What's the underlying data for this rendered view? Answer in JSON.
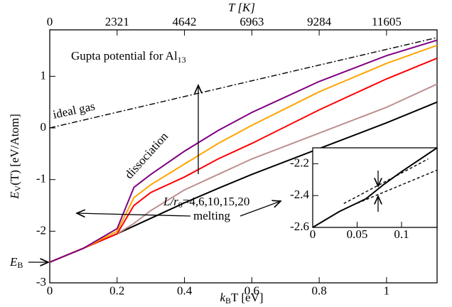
{
  "chart_data": [
    {
      "type": "line",
      "x_label": [
        "k",
        "B",
        "T [eV]"
      ],
      "y_label": [
        "E",
        "V",
        "(T) [eV/Atom]"
      ],
      "x2_label": "T [K]",
      "annotations": {
        "potential": [
          "Gupta potential for Al",
          "13"
        ],
        "ideal_gas": "ideal gas",
        "dissociation": "dissociation",
        "sizes": [
          "L/r",
          "0",
          "=4,6,10,15,20"
        ],
        "melting": "melting",
        "binding": [
          "E",
          "B"
        ]
      },
      "xlim": [
        0,
        1.15
      ],
      "ylim": [
        -3,
        1.9
      ],
      "xticks": [
        0,
        0.2,
        0.4,
        0.6,
        0.8,
        1
      ],
      "yticks": [
        -3,
        -2,
        -1,
        0,
        1
      ],
      "x2lim": [
        0,
        13346
      ],
      "x2ticks": [
        0,
        2321,
        4642,
        6963,
        9284,
        11605
      ],
      "series": [
        {
          "color": "#000000",
          "dash": "8 3 2 3",
          "x": [
            0,
            1.15
          ],
          "values": [
            0,
            1.75
          ]
        },
        {
          "color": "#000000",
          "x": [
            0,
            0.1,
            0.2,
            0.25,
            0.3,
            0.4,
            0.5,
            0.6,
            0.8,
            1.0,
            1.15
          ],
          "values": [
            -2.6,
            -2.33,
            -2.05,
            -1.9,
            -1.75,
            -1.45,
            -1.17,
            -0.9,
            -0.4,
            0.1,
            0.5
          ]
        },
        {
          "color": "#bc8f8f",
          "x": [
            0,
            0.1,
            0.2,
            0.25,
            0.3,
            0.4,
            0.5,
            0.6,
            0.8,
            1.0,
            1.15
          ],
          "values": [
            -2.6,
            -2.33,
            -2.05,
            -1.85,
            -1.6,
            -1.2,
            -0.9,
            -0.6,
            -0.1,
            0.4,
            0.85
          ]
        },
        {
          "color": "#ff0000",
          "x": [
            0,
            0.1,
            0.2,
            0.25,
            0.3,
            0.4,
            0.5,
            0.6,
            0.8,
            1.0,
            1.15
          ],
          "values": [
            -2.6,
            -2.33,
            -2.05,
            -1.5,
            -1.25,
            -0.95,
            -0.6,
            -0.3,
            0.35,
            0.95,
            1.35
          ]
        },
        {
          "color": "#ffa500",
          "x": [
            0,
            0.1,
            0.2,
            0.25,
            0.3,
            0.4,
            0.5,
            0.6,
            0.8,
            1.0,
            1.15
          ],
          "values": [
            -2.6,
            -2.33,
            -2.0,
            -1.35,
            -1.1,
            -0.7,
            -0.3,
            0.05,
            0.7,
            1.25,
            1.6
          ]
        },
        {
          "color": "#800080",
          "x": [
            0,
            0.1,
            0.2,
            0.25,
            0.3,
            0.4,
            0.5,
            0.6,
            0.8,
            1.0,
            1.15
          ],
          "values": [
            -2.6,
            -2.33,
            -1.95,
            -1.15,
            -0.9,
            -0.45,
            -0.05,
            0.3,
            0.9,
            1.4,
            1.7
          ]
        }
      ]
    },
    {
      "type": "line",
      "xlim": [
        0,
        0.14
      ],
      "ylim": [
        -2.6,
        -2.1
      ],
      "xticks": [
        0,
        0.05,
        0.1
      ],
      "yticks": [
        -2.6,
        -2.4,
        -2.2
      ],
      "series": [
        {
          "color": "#000000",
          "x": [
            0,
            0.03,
            0.06,
            0.08,
            0.1,
            0.14
          ],
          "values": [
            -2.6,
            -2.5,
            -2.42,
            -2.33,
            -2.25,
            -2.1
          ]
        },
        {
          "color": "#000000",
          "dash": "4 3",
          "x": [
            0.035,
            0.13
          ],
          "values": [
            -2.45,
            -2.17
          ]
        },
        {
          "color": "#000000",
          "dash": "4 3",
          "x": [
            0.045,
            0.14
          ],
          "values": [
            -2.46,
            -2.24
          ]
        }
      ]
    }
  ]
}
